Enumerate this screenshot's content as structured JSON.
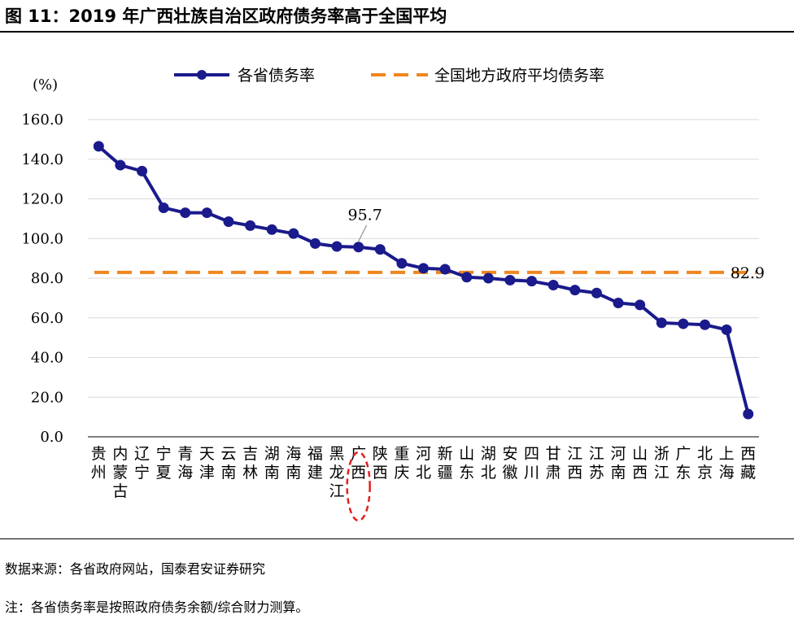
{
  "figure": {
    "title": "图 11：2019 年广西壮族自治区政府债务率高于全国平均",
    "source": "数据来源：各省政府网站，国泰君安证券研究",
    "note": "注：各省债务率是按照政府债务余额/综合财力测算。"
  },
  "chart_data": {
    "type": "line",
    "ylabel": "(%)",
    "ylim": [
      0,
      160
    ],
    "yticks": [
      "0.0",
      "20.0",
      "40.0",
      "60.0",
      "80.0",
      "100.0",
      "120.0",
      "140.0",
      "160.0"
    ],
    "grid": true,
    "legend_position": "top",
    "categories": [
      [
        "贵",
        "州"
      ],
      [
        "内",
        "蒙",
        "古"
      ],
      [
        "辽",
        "宁"
      ],
      [
        "宁",
        "夏"
      ],
      [
        "青",
        "海"
      ],
      [
        "天",
        "津"
      ],
      [
        "云",
        "南"
      ],
      [
        "吉",
        "林"
      ],
      [
        "湖",
        "南"
      ],
      [
        "海",
        "南"
      ],
      [
        "福",
        "建"
      ],
      [
        "黑",
        "龙",
        "江"
      ],
      [
        "广",
        "西"
      ],
      [
        "陕",
        "西"
      ],
      [
        "重",
        "庆"
      ],
      [
        "河",
        "北"
      ],
      [
        "新",
        "疆"
      ],
      [
        "山",
        "东"
      ],
      [
        "湖",
        "北"
      ],
      [
        "安",
        "徽"
      ],
      [
        "四",
        "川"
      ],
      [
        "甘",
        "肃"
      ],
      [
        "江",
        "西"
      ],
      [
        "江",
        "苏"
      ],
      [
        "河",
        "南"
      ],
      [
        "山",
        "西"
      ],
      [
        "浙",
        "江"
      ],
      [
        "广",
        "东"
      ],
      [
        "北",
        "京"
      ],
      [
        "上",
        "海"
      ],
      [
        "西",
        "藏"
      ]
    ],
    "series": [
      {
        "name": "各省债务率",
        "style": "line-marker",
        "color": "#1a1a8c",
        "values": [
          146.5,
          137.0,
          134.0,
          115.5,
          113.0,
          113.0,
          108.5,
          106.5,
          104.5,
          102.5,
          97.5,
          96.0,
          95.7,
          94.5,
          87.5,
          85.0,
          84.5,
          80.5,
          80.0,
          79.0,
          78.5,
          76.5,
          74.0,
          72.5,
          67.5,
          66.5,
          57.5,
          57.0,
          56.5,
          54.0,
          11.5
        ]
      },
      {
        "name": "全国地方政府平均债务率",
        "style": "dashed",
        "color": "#f0861f",
        "value": 82.9
      }
    ],
    "annotations": [
      {
        "text": "95.7",
        "category_index": 12,
        "value": 95.7
      },
      {
        "text": "82.9",
        "category_index": 30,
        "value": 82.9
      }
    ],
    "highlight": {
      "category_index": 12,
      "shape": "ellipse",
      "color": "#e02020",
      "style": "dashed"
    }
  }
}
